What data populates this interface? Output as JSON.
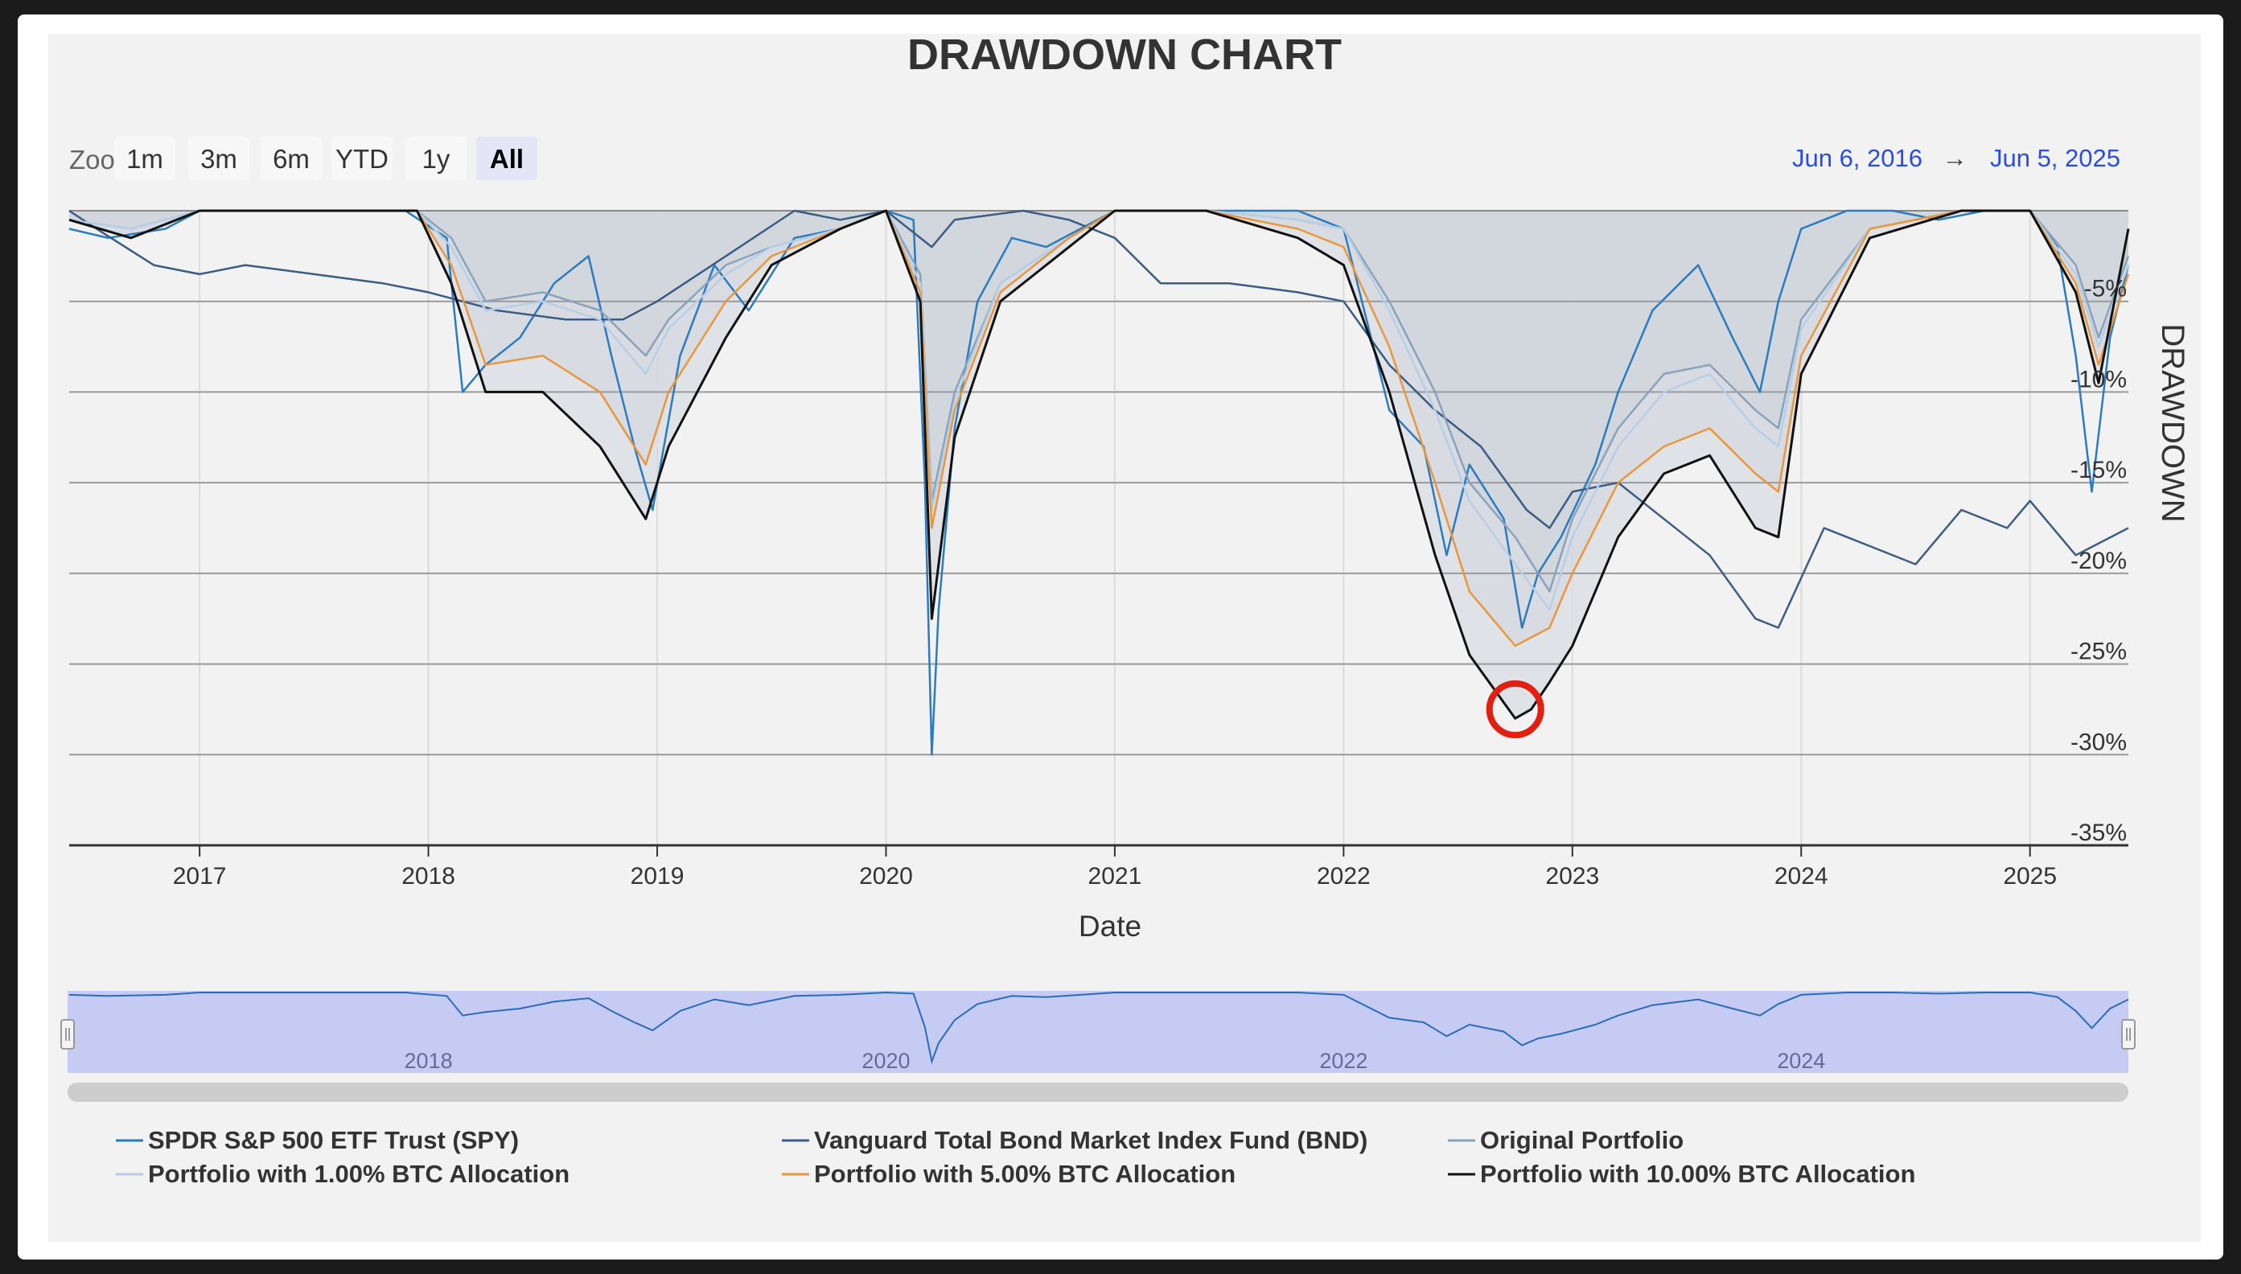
{
  "chart_data": {
    "type": "area",
    "title": "DRAWDOWN CHART",
    "xlabel": "Date",
    "ylabel": "DRAWDOWN",
    "ylim": [
      -35,
      0
    ],
    "yticks": [
      -5,
      -10,
      -15,
      -20,
      -25,
      -30,
      -35
    ],
    "ytick_labels": [
      "-5%",
      "-10%",
      "-15%",
      "-20%",
      "-25%",
      "-30%",
      "-35%"
    ],
    "xlim": [
      2016.43,
      2025.43
    ],
    "xticks": [
      2017,
      2018,
      2019,
      2020,
      2021,
      2022,
      2023,
      2024,
      2025
    ],
    "xtick_labels": [
      "2017",
      "2018",
      "2019",
      "2020",
      "2021",
      "2022",
      "2023",
      "2024",
      "2025"
    ],
    "grid": true,
    "legend_position": "bottom",
    "series": [
      {
        "name": "SPDR S&P 500 ETF Trust (SPY)",
        "color": "#2b7bc0",
        "x": [
          2016.43,
          2016.6,
          2016.85,
          2017.0,
          2017.3,
          2017.6,
          2017.9,
          2018.08,
          2018.15,
          2018.25,
          2018.4,
          2018.55,
          2018.7,
          2018.8,
          2018.9,
          2018.98,
          2019.1,
          2019.25,
          2019.4,
          2019.6,
          2019.8,
          2020.0,
          2020.12,
          2020.17,
          2020.2,
          2020.23,
          2020.3,
          2020.4,
          2020.55,
          2020.7,
          2020.85,
          2021.0,
          2021.2,
          2021.5,
          2021.8,
          2022.0,
          2022.1,
          2022.2,
          2022.35,
          2022.45,
          2022.55,
          2022.7,
          2022.78,
          2022.85,
          2022.95,
          2023.1,
          2023.2,
          2023.35,
          2023.55,
          2023.7,
          2023.82,
          2023.9,
          2024.0,
          2024.2,
          2024.4,
          2024.6,
          2024.8,
          2025.0,
          2025.12,
          2025.2,
          2025.27,
          2025.35,
          2025.43
        ],
        "values": [
          -1.0,
          -1.5,
          -1.0,
          0.0,
          0.0,
          0.0,
          0.0,
          -1.5,
          -10.0,
          -8.5,
          -7.0,
          -4.0,
          -2.5,
          -8.0,
          -13.0,
          -16.5,
          -8.0,
          -3.0,
          -5.5,
          -1.5,
          -1.0,
          0.0,
          -0.5,
          -15.0,
          -30.0,
          -22.0,
          -12.0,
          -5.0,
          -1.5,
          -2.0,
          -1.0,
          0.0,
          0.0,
          0.0,
          0.0,
          -1.0,
          -6.0,
          -11.0,
          -13.0,
          -19.0,
          -14.0,
          -17.0,
          -23.0,
          -20.0,
          -18.0,
          -14.0,
          -10.0,
          -5.5,
          -3.0,
          -7.0,
          -10.0,
          -5.0,
          -1.0,
          0.0,
          0.0,
          -0.5,
          0.0,
          0.0,
          -2.0,
          -8.0,
          -15.5,
          -7.0,
          -3.0
        ]
      },
      {
        "name": "Vanguard Total Bond Market Index Fund (BND)",
        "color": "#3b5d85",
        "x": [
          2016.43,
          2016.55,
          2016.8,
          2017.0,
          2017.2,
          2017.5,
          2017.8,
          2018.0,
          2018.3,
          2018.6,
          2018.85,
          2019.0,
          2019.3,
          2019.6,
          2019.8,
          2020.0,
          2020.2,
          2020.3,
          2020.6,
          2020.8,
          2021.0,
          2021.2,
          2021.5,
          2021.8,
          2022.0,
          2022.2,
          2022.4,
          2022.6,
          2022.8,
          2022.9,
          2023.0,
          2023.2,
          2023.4,
          2023.6,
          2023.8,
          2023.9,
          2024.1,
          2024.3,
          2024.5,
          2024.7,
          2024.9,
          2025.0,
          2025.2,
          2025.43
        ],
        "values": [
          0.0,
          -1.0,
          -3.0,
          -3.5,
          -3.0,
          -3.5,
          -4.0,
          -4.5,
          -5.5,
          -6.0,
          -6.0,
          -5.0,
          -2.5,
          0.0,
          -0.5,
          0.0,
          -2.0,
          -0.5,
          0.0,
          -0.5,
          -1.5,
          -4.0,
          -4.0,
          -4.5,
          -5.0,
          -8.5,
          -11.0,
          -13.0,
          -16.5,
          -17.5,
          -15.5,
          -15.0,
          -17.0,
          -19.0,
          -22.5,
          -23.0,
          -17.5,
          -18.5,
          -19.5,
          -16.5,
          -17.5,
          -16.0,
          -19.0,
          -17.5
        ]
      },
      {
        "name": "Original Portfolio",
        "color": "#8aa3bd",
        "x": [
          2016.43,
          2016.7,
          2017.0,
          2017.5,
          2017.95,
          2018.1,
          2018.25,
          2018.5,
          2018.75,
          2018.95,
          2019.05,
          2019.3,
          2019.5,
          2019.8,
          2020.0,
          2020.15,
          2020.2,
          2020.3,
          2020.5,
          2020.8,
          2021.0,
          2021.4,
          2021.8,
          2022.0,
          2022.2,
          2022.4,
          2022.55,
          2022.75,
          2022.9,
          2023.0,
          2023.2,
          2023.4,
          2023.6,
          2023.8,
          2023.9,
          2024.0,
          2024.3,
          2024.7,
          2025.0,
          2025.2,
          2025.3,
          2025.43
        ],
        "values": [
          -0.5,
          -1.0,
          0.0,
          0.0,
          0.0,
          -1.5,
          -5.0,
          -4.5,
          -5.5,
          -8.0,
          -6.0,
          -3.0,
          -2.0,
          -1.0,
          0.0,
          -3.5,
          -16.0,
          -10.0,
          -4.0,
          -1.5,
          0.0,
          0.0,
          -0.5,
          -1.0,
          -5.0,
          -10.0,
          -15.0,
          -18.0,
          -21.0,
          -17.0,
          -12.0,
          -9.0,
          -8.5,
          -11.0,
          -12.0,
          -6.0,
          -1.0,
          0.0,
          0.0,
          -3.0,
          -7.0,
          -2.5
        ]
      },
      {
        "name": "Portfolio with 1.00% BTC Allocation",
        "color": "#b6cfe6",
        "x": [
          2016.43,
          2016.7,
          2017.0,
          2017.5,
          2017.95,
          2018.1,
          2018.25,
          2018.5,
          2018.75,
          2018.95,
          2019.05,
          2019.3,
          2019.5,
          2019.8,
          2020.0,
          2020.15,
          2020.2,
          2020.3,
          2020.5,
          2020.8,
          2021.0,
          2021.4,
          2021.8,
          2022.0,
          2022.2,
          2022.4,
          2022.55,
          2022.75,
          2022.9,
          2023.0,
          2023.2,
          2023.4,
          2023.6,
          2023.8,
          2023.9,
          2024.0,
          2024.3,
          2024.7,
          2025.0,
          2025.2,
          2025.3,
          2025.43
        ],
        "values": [
          -0.5,
          -1.0,
          0.0,
          0.0,
          0.0,
          -2.0,
          -5.5,
          -5.0,
          -6.0,
          -9.0,
          -6.5,
          -3.5,
          -2.0,
          -1.0,
          0.0,
          -4.0,
          -16.5,
          -10.5,
          -4.0,
          -1.5,
          0.0,
          0.0,
          -0.5,
          -1.0,
          -5.5,
          -11.0,
          -16.0,
          -19.5,
          -22.0,
          -18.0,
          -13.0,
          -10.0,
          -9.0,
          -12.0,
          -13.0,
          -6.5,
          -1.0,
          0.0,
          0.0,
          -3.5,
          -7.5,
          -3.0
        ]
      },
      {
        "name": "Portfolio with 5.00% BTC Allocation",
        "color": "#e8973c",
        "x": [
          2016.43,
          2016.7,
          2017.0,
          2017.5,
          2017.95,
          2018.1,
          2018.25,
          2018.5,
          2018.75,
          2018.95,
          2019.05,
          2019.3,
          2019.5,
          2019.8,
          2020.0,
          2020.15,
          2020.2,
          2020.3,
          2020.5,
          2020.8,
          2021.0,
          2021.4,
          2021.8,
          2022.0,
          2022.2,
          2022.4,
          2022.55,
          2022.75,
          2022.9,
          2023.0,
          2023.2,
          2023.4,
          2023.6,
          2023.8,
          2023.9,
          2024.0,
          2024.3,
          2024.7,
          2025.0,
          2025.2,
          2025.3,
          2025.43
        ],
        "values": [
          -0.5,
          -1.5,
          0.0,
          0.0,
          0.0,
          -3.0,
          -8.5,
          -8.0,
          -10.0,
          -14.0,
          -10.0,
          -5.0,
          -2.5,
          -1.0,
          0.0,
          -4.5,
          -17.5,
          -11.0,
          -4.5,
          -1.5,
          0.0,
          0.0,
          -1.0,
          -2.0,
          -7.5,
          -15.0,
          -21.0,
          -24.0,
          -23.0,
          -20.0,
          -15.0,
          -13.0,
          -12.0,
          -14.5,
          -15.5,
          -8.0,
          -1.0,
          0.0,
          0.0,
          -4.0,
          -8.5,
          -3.5
        ]
      },
      {
        "name": "Portfolio with 10.00% BTC Allocation",
        "color": "#111111",
        "x": [
          2016.43,
          2016.7,
          2017.0,
          2017.5,
          2017.95,
          2018.1,
          2018.25,
          2018.5,
          2018.75,
          2018.95,
          2019.05,
          2019.3,
          2019.5,
          2019.8,
          2020.0,
          2020.15,
          2020.2,
          2020.3,
          2020.5,
          2020.8,
          2021.0,
          2021.4,
          2021.8,
          2022.0,
          2022.2,
          2022.4,
          2022.55,
          2022.75,
          2022.82,
          2022.9,
          2023.0,
          2023.2,
          2023.4,
          2023.6,
          2023.8,
          2023.9,
          2024.0,
          2024.3,
          2024.7,
          2025.0,
          2025.2,
          2025.3,
          2025.43
        ],
        "values": [
          -0.5,
          -1.5,
          0.0,
          0.0,
          0.0,
          -4.0,
          -10.0,
          -10.0,
          -13.0,
          -17.0,
          -13.0,
          -7.0,
          -3.0,
          -1.0,
          0.0,
          -5.0,
          -22.5,
          -12.5,
          -5.0,
          -2.0,
          0.0,
          0.0,
          -1.5,
          -3.0,
          -10.0,
          -19.0,
          -24.5,
          -28.0,
          -27.5,
          -26.0,
          -24.0,
          -18.0,
          -14.5,
          -13.5,
          -17.5,
          -18.0,
          -9.0,
          -1.5,
          0.0,
          0.0,
          -4.5,
          -9.5,
          -1.0
        ]
      }
    ],
    "annotations": [
      {
        "type": "circle",
        "x": 2022.75,
        "y": -27.5,
        "color": "#e02010"
      }
    ]
  },
  "zoom": {
    "label": "Zoom",
    "buttons": [
      "1m",
      "3m",
      "6m",
      "YTD",
      "1y",
      "All"
    ],
    "selected": "All"
  },
  "range": {
    "from": "Jun 6, 2016",
    "arrow": "→",
    "to": "Jun 5, 2025"
  },
  "navigator": {
    "labels": [
      {
        "year": 2018,
        "text": "2018"
      },
      {
        "year": 2020,
        "text": "2020"
      },
      {
        "year": 2022,
        "text": "2022"
      },
      {
        "year": 2024,
        "text": "2024"
      }
    ]
  },
  "colors": {
    "background": "#f2f2f2",
    "range_text": "#2a4de0",
    "navigator_fill": "#c5cbf3",
    "annotation": "#e02010"
  }
}
